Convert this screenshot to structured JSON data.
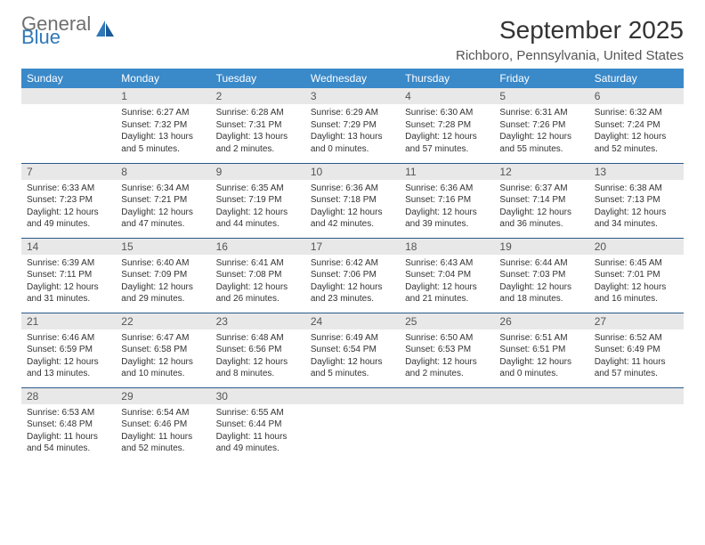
{
  "logo": {
    "general": "General",
    "blue": "Blue"
  },
  "title": "September 2025",
  "location": "Richboro, Pennsylvania, United States",
  "colors": {
    "header_bg": "#3a89c9",
    "header_text": "#ffffff",
    "daynum_bg": "#e8e8e8",
    "daynum_text": "#555555",
    "border": "#2a5a8a",
    "logo_gray": "#6f6f6f",
    "logo_blue": "#2f78b8"
  },
  "weekdays": [
    "Sunday",
    "Monday",
    "Tuesday",
    "Wednesday",
    "Thursday",
    "Friday",
    "Saturday"
  ],
  "weeks": [
    [
      null,
      {
        "n": "1",
        "sr": "6:27 AM",
        "ss": "7:32 PM",
        "dl": "13 hours and 5 minutes."
      },
      {
        "n": "2",
        "sr": "6:28 AM",
        "ss": "7:31 PM",
        "dl": "13 hours and 2 minutes."
      },
      {
        "n": "3",
        "sr": "6:29 AM",
        "ss": "7:29 PM",
        "dl": "13 hours and 0 minutes."
      },
      {
        "n": "4",
        "sr": "6:30 AM",
        "ss": "7:28 PM",
        "dl": "12 hours and 57 minutes."
      },
      {
        "n": "5",
        "sr": "6:31 AM",
        "ss": "7:26 PM",
        "dl": "12 hours and 55 minutes."
      },
      {
        "n": "6",
        "sr": "6:32 AM",
        "ss": "7:24 PM",
        "dl": "12 hours and 52 minutes."
      }
    ],
    [
      {
        "n": "7",
        "sr": "6:33 AM",
        "ss": "7:23 PM",
        "dl": "12 hours and 49 minutes."
      },
      {
        "n": "8",
        "sr": "6:34 AM",
        "ss": "7:21 PM",
        "dl": "12 hours and 47 minutes."
      },
      {
        "n": "9",
        "sr": "6:35 AM",
        "ss": "7:19 PM",
        "dl": "12 hours and 44 minutes."
      },
      {
        "n": "10",
        "sr": "6:36 AM",
        "ss": "7:18 PM",
        "dl": "12 hours and 42 minutes."
      },
      {
        "n": "11",
        "sr": "6:36 AM",
        "ss": "7:16 PM",
        "dl": "12 hours and 39 minutes."
      },
      {
        "n": "12",
        "sr": "6:37 AM",
        "ss": "7:14 PM",
        "dl": "12 hours and 36 minutes."
      },
      {
        "n": "13",
        "sr": "6:38 AM",
        "ss": "7:13 PM",
        "dl": "12 hours and 34 minutes."
      }
    ],
    [
      {
        "n": "14",
        "sr": "6:39 AM",
        "ss": "7:11 PM",
        "dl": "12 hours and 31 minutes."
      },
      {
        "n": "15",
        "sr": "6:40 AM",
        "ss": "7:09 PM",
        "dl": "12 hours and 29 minutes."
      },
      {
        "n": "16",
        "sr": "6:41 AM",
        "ss": "7:08 PM",
        "dl": "12 hours and 26 minutes."
      },
      {
        "n": "17",
        "sr": "6:42 AM",
        "ss": "7:06 PM",
        "dl": "12 hours and 23 minutes."
      },
      {
        "n": "18",
        "sr": "6:43 AM",
        "ss": "7:04 PM",
        "dl": "12 hours and 21 minutes."
      },
      {
        "n": "19",
        "sr": "6:44 AM",
        "ss": "7:03 PM",
        "dl": "12 hours and 18 minutes."
      },
      {
        "n": "20",
        "sr": "6:45 AM",
        "ss": "7:01 PM",
        "dl": "12 hours and 16 minutes."
      }
    ],
    [
      {
        "n": "21",
        "sr": "6:46 AM",
        "ss": "6:59 PM",
        "dl": "12 hours and 13 minutes."
      },
      {
        "n": "22",
        "sr": "6:47 AM",
        "ss": "6:58 PM",
        "dl": "12 hours and 10 minutes."
      },
      {
        "n": "23",
        "sr": "6:48 AM",
        "ss": "6:56 PM",
        "dl": "12 hours and 8 minutes."
      },
      {
        "n": "24",
        "sr": "6:49 AM",
        "ss": "6:54 PM",
        "dl": "12 hours and 5 minutes."
      },
      {
        "n": "25",
        "sr": "6:50 AM",
        "ss": "6:53 PM",
        "dl": "12 hours and 2 minutes."
      },
      {
        "n": "26",
        "sr": "6:51 AM",
        "ss": "6:51 PM",
        "dl": "12 hours and 0 minutes."
      },
      {
        "n": "27",
        "sr": "6:52 AM",
        "ss": "6:49 PM",
        "dl": "11 hours and 57 minutes."
      }
    ],
    [
      {
        "n": "28",
        "sr": "6:53 AM",
        "ss": "6:48 PM",
        "dl": "11 hours and 54 minutes."
      },
      {
        "n": "29",
        "sr": "6:54 AM",
        "ss": "6:46 PM",
        "dl": "11 hours and 52 minutes."
      },
      {
        "n": "30",
        "sr": "6:55 AM",
        "ss": "6:44 PM",
        "dl": "11 hours and 49 minutes."
      },
      null,
      null,
      null,
      null
    ]
  ],
  "labels": {
    "sunrise": "Sunrise:",
    "sunset": "Sunset:",
    "daylight": "Daylight:"
  }
}
